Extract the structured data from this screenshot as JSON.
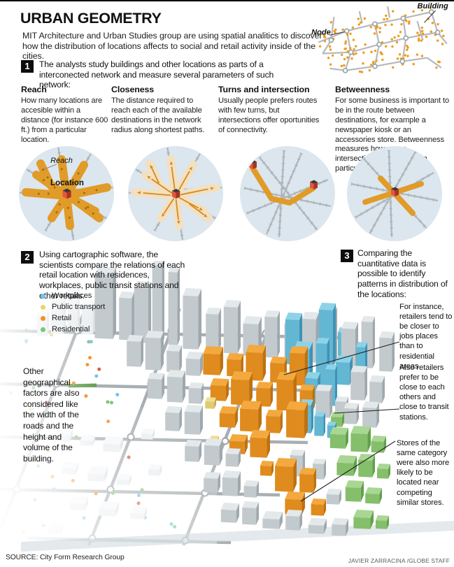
{
  "header": {
    "title": "URBAN GEOMETRY",
    "intro": "MIT Architecture and Urban Studies group are using spatial analitics to discover how the distribution of locations affects to social and retail activity inside of the cities."
  },
  "network_diagram": {
    "building_label": "Building",
    "node_label": "Node"
  },
  "step1": {
    "number": "1",
    "text": "The analysts study buildings and other locations as parts of a interconected network and measure several parameters of such network:"
  },
  "parameters": [
    {
      "name": "Reach",
      "description": "How many locations are accesible within a distance (for instance 600 ft.) from a particular location."
    },
    {
      "name": "Closeness",
      "description": "The distance required to reach each of the available destinations in the network radius along shortest paths."
    },
    {
      "name": "Turns and intersection",
      "description": "Usually people prefers routes with few turns, but intersections offer oportunities of connectivity."
    },
    {
      "name": "Betweenness",
      "description": "For some business is important to be in the route between destinations, for example a newspaper kiosk or an accessories store. Betweenness measures how many intersections of paths has a particular spot"
    }
  ],
  "reach_diagram": {
    "reach_label": "Reach",
    "location_label": "Location"
  },
  "step2": {
    "number": "2",
    "text": "Using cartographic software, the scientists compare the relations of each retail location with residences, workplaces, public transit stations and other retails."
  },
  "legend": {
    "items": [
      {
        "label": "Workplaces",
        "color": "#6ec5e8"
      },
      {
        "label": "Public transport",
        "color": "#e9d36b"
      },
      {
        "label": "Retail",
        "color": "#f0941f"
      },
      {
        "label": "Residential",
        "color": "#7cc57c"
      }
    ]
  },
  "step3": {
    "number": "3",
    "text": "Comparing the cuantitative data is possible to identify patterns in distribution of the locations:"
  },
  "notes": {
    "left": "Other geographical factors are also considered like the width of the roads and the height and volume of the building.",
    "right": [
      "For instance, retailers tend to be closer to jobs places than to residential areas",
      "Also retailers prefer to be close to each others and close to transit stations.",
      "Stores of the same category were also more likely to be located near competing similar stores."
    ]
  },
  "footer": {
    "source": "SOURCE: City Form Research Group",
    "credit": "JAVIER ZARRACINA /GLOBE STAFF"
  },
  "colors": {
    "accent_orange": "#e8951f",
    "pale_orange": "#f2e0c0",
    "circle_background": "#dbe6ef",
    "road_gray": "#a8aeb2",
    "blue_building": "#5fb4d4",
    "green_building": "#7cc063",
    "red_house": "#d14f3a"
  }
}
